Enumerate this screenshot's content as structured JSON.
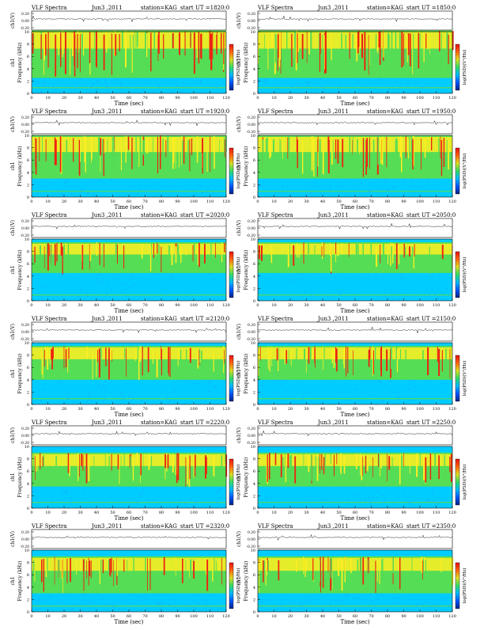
{
  "chart_data": [
    {
      "type": "heatmap",
      "header_left": "VLF Spectra",
      "date": "Jun3 ,2011",
      "station": "station=KAG",
      "start_ut": "start UT =1820:0",
      "waveform_label": "ch1(V)",
      "waveform_ticks": [
        "0.20",
        "0.00",
        "-0.20"
      ],
      "freq_label": "Frequency (kHz)",
      "channel_label": "ch1",
      "freq_ticks": [
        0,
        2,
        4,
        6,
        8,
        10
      ],
      "xlabel": "Time (sec)",
      "x_ticks": [
        0,
        10,
        20,
        30,
        40,
        50,
        60,
        70,
        80,
        90,
        100,
        110,
        120
      ],
      "xlim": [
        0,
        120
      ],
      "ylim": [
        0,
        10
      ],
      "colorbar_label": "log(PSD)(V²/Hz)",
      "band": {
        "low_khz": 2.5,
        "high_khz": 10.2,
        "intensity": 0.85
      }
    },
    {
      "type": "heatmap",
      "header_left": "VLF Spectra",
      "date": "Jun3 ,2011",
      "station": "station=KAG",
      "start_ut": "start UT =1850:0",
      "waveform_label": "ch1(V)",
      "waveform_ticks": [
        "0.20",
        "0.00",
        "-0.20"
      ],
      "freq_label": "Frequency (kHz)",
      "channel_label": "ch1",
      "freq_ticks": [
        0,
        2,
        4,
        6,
        8,
        10
      ],
      "xlabel": "Time (sec)",
      "x_ticks": [
        0,
        10,
        20,
        30,
        40,
        50,
        60,
        70,
        80,
        90,
        100,
        110,
        120
      ],
      "xlim": [
        0,
        120
      ],
      "ylim": [
        0,
        10
      ],
      "colorbar_label": "log(PSD)(V²/Hz)",
      "band": {
        "low_khz": 2.5,
        "high_khz": 10.2,
        "intensity": 0.85
      }
    },
    {
      "type": "heatmap",
      "header_left": "VLF Spectra",
      "date": "Jun3 ,2011",
      "station": "station=KAG",
      "start_ut": "start UT =1920:0",
      "waveform_label": "ch1(V)",
      "waveform_ticks": [
        "0.20",
        "0.00",
        "-0.20"
      ],
      "freq_label": "Frequency (kHz)",
      "channel_label": "ch1",
      "freq_ticks": [
        0,
        2,
        4,
        6,
        8,
        10
      ],
      "xlabel": "Time (sec)",
      "x_ticks": [
        0,
        10,
        20,
        30,
        40,
        50,
        60,
        70,
        80,
        90,
        100,
        110,
        120
      ],
      "xlim": [
        0,
        120
      ],
      "ylim": [
        0,
        10
      ],
      "colorbar_label": "log(PSD)(V²/Hz)",
      "band": {
        "low_khz": 3.0,
        "high_khz": 10.0,
        "intensity": 0.8
      }
    },
    {
      "type": "heatmap",
      "header_left": "VLF Spectra",
      "date": "Jun3 ,2011",
      "station": "station=KAG",
      "start_ut": "start UT =1950:0",
      "waveform_label": "ch1(V)",
      "waveform_ticks": [
        "0.20",
        "0.00",
        "-0.20"
      ],
      "freq_label": "Frequency (kHz)",
      "channel_label": "ch1",
      "freq_ticks": [
        0,
        2,
        4,
        6,
        8,
        10
      ],
      "xlabel": "Time (sec)",
      "x_ticks": [
        0,
        10,
        20,
        30,
        40,
        50,
        60,
        70,
        80,
        90,
        100,
        110,
        120
      ],
      "xlim": [
        0,
        120
      ],
      "ylim": [
        0,
        10
      ],
      "colorbar_label": "log(PSD)(V²/Hz)",
      "band": {
        "low_khz": 3.0,
        "high_khz": 10.0,
        "intensity": 0.8
      }
    },
    {
      "type": "heatmap",
      "header_left": "VLF Spectra",
      "date": "Jun3 ,2011",
      "station": "station=KAG",
      "start_ut": "start UT =2020:0",
      "waveform_label": "ch1(V)",
      "waveform_ticks": [
        "0.20",
        "0.00",
        "-0.20"
      ],
      "freq_label": "Frequency (kHz)",
      "channel_label": "ch1",
      "freq_ticks": [
        0,
        2,
        4,
        6,
        8,
        10
      ],
      "xlabel": "Time (sec)",
      "x_ticks": [
        0,
        10,
        20,
        30,
        40,
        50,
        60,
        70,
        80,
        90,
        100,
        110,
        120
      ],
      "xlim": [
        0,
        120
      ],
      "ylim": [
        0,
        10
      ],
      "colorbar_label": "log(PSD)(V²/Hz)",
      "band": {
        "low_khz": 4.5,
        "high_khz": 9.5,
        "intensity": 0.55
      }
    },
    {
      "type": "heatmap",
      "header_left": "VLF Spectra",
      "date": "Jun3 ,2011",
      "station": "station=KAG",
      "start_ut": "start UT =2050:0",
      "waveform_label": "ch1(V)",
      "waveform_ticks": [
        "0.20",
        "0.00",
        "-0.20"
      ],
      "freq_label": "Frequency (kHz)",
      "channel_label": "ch1",
      "freq_ticks": [
        0,
        2,
        4,
        6,
        8,
        10
      ],
      "xlabel": "Time (sec)",
      "x_ticks": [
        0,
        10,
        20,
        30,
        40,
        50,
        60,
        70,
        80,
        90,
        100,
        110,
        120
      ],
      "xlim": [
        0,
        120
      ],
      "ylim": [
        0,
        10
      ],
      "colorbar_label": "log(PSD)(V²/Hz)",
      "band": {
        "low_khz": 4.5,
        "high_khz": 9.5,
        "intensity": 0.5
      }
    },
    {
      "type": "heatmap",
      "header_left": "VLF Spectra",
      "date": "Jun3 ,2011",
      "station": "station=KAG",
      "start_ut": "start UT =2120:0",
      "waveform_label": "ch1(V)",
      "waveform_ticks": [
        "0.20",
        "0.00",
        "-0.20"
      ],
      "freq_label": "Frequency (kHz)",
      "channel_label": "ch1",
      "freq_ticks": [
        0,
        2,
        4,
        6,
        8,
        10
      ],
      "xlabel": "Time (sec)",
      "x_ticks": [
        0,
        10,
        20,
        30,
        40,
        50,
        60,
        70,
        80,
        90,
        100,
        110,
        120
      ],
      "xlim": [
        0,
        120
      ],
      "ylim": [
        0,
        10
      ],
      "colorbar_label": "log(PSD)(V²/Hz)",
      "band": {
        "low_khz": 4.0,
        "high_khz": 9.5,
        "intensity": 0.6
      }
    },
    {
      "type": "heatmap",
      "header_left": "VLF Spectra",
      "date": "Jun3 ,2011",
      "station": "station=KAG",
      "start_ut": "start UT =2150:0",
      "waveform_label": "ch1(V)",
      "waveform_ticks": [
        "0.20",
        "0.00",
        "-0.20"
      ],
      "freq_label": "Frequency (kHz)",
      "channel_label": "ch1",
      "freq_ticks": [
        0,
        2,
        4,
        6,
        8,
        10
      ],
      "xlabel": "Time (sec)",
      "x_ticks": [
        0,
        10,
        20,
        30,
        40,
        50,
        60,
        70,
        80,
        90,
        100,
        110,
        120
      ],
      "xlim": [
        0,
        120
      ],
      "ylim": [
        0,
        10
      ],
      "colorbar_label": "log(PSD)(V²/Hz)",
      "band": {
        "low_khz": 4.0,
        "high_khz": 9.5,
        "intensity": 0.6
      }
    },
    {
      "type": "heatmap",
      "header_left": "VLF Spectra",
      "date": "Jun3 ,2011",
      "station": "station=KAG",
      "start_ut": "start UT =2220:0",
      "waveform_label": "ch1(V)",
      "waveform_ticks": [
        "0.20",
        "0.00",
        "-0.20"
      ],
      "freq_label": "Frequency (kHz)",
      "channel_label": "ch1",
      "freq_ticks": [
        0,
        2,
        4,
        6,
        8,
        10
      ],
      "xlabel": "Time (sec)",
      "x_ticks": [
        0,
        10,
        20,
        30,
        40,
        50,
        60,
        70,
        80,
        90,
        100,
        110,
        120
      ],
      "xlim": [
        0,
        120
      ],
      "ylim": [
        0,
        10
      ],
      "colorbar_label": "log(PSD)(V²/Hz)",
      "band": {
        "low_khz": 3.5,
        "high_khz": 9.0,
        "intensity": 0.7
      }
    },
    {
      "type": "heatmap",
      "header_left": "VLF Spectra",
      "date": "Jun3 ,2011",
      "station": "station=KAG",
      "start_ut": "start UT =2250:0",
      "waveform_label": "ch1(V)",
      "waveform_ticks": [
        "0.20",
        "0.00",
        "-0.20"
      ],
      "freq_label": "Frequency (kHz)",
      "channel_label": "ch1",
      "freq_ticks": [
        0,
        2,
        4,
        6,
        8,
        10
      ],
      "xlabel": "Time (sec)",
      "x_ticks": [
        0,
        10,
        20,
        30,
        40,
        50,
        60,
        70,
        80,
        90,
        100,
        110,
        120
      ],
      "xlim": [
        0,
        120
      ],
      "ylim": [
        0,
        10
      ],
      "colorbar_label": "log(PSD)(V²/Hz)",
      "band": {
        "low_khz": 3.5,
        "high_khz": 9.0,
        "intensity": 0.7
      }
    },
    {
      "type": "heatmap",
      "header_left": "VLF Spectra",
      "date": "Jun3 ,2011",
      "station": "station=KAG",
      "start_ut": "start UT =2320:0",
      "waveform_label": "ch1(V)",
      "waveform_ticks": [
        "0.20",
        "0.00",
        "-0.20"
      ],
      "freq_label": "Frequency (kHz)",
      "channel_label": "ch1",
      "freq_ticks": [
        0,
        2,
        4,
        6,
        8,
        10
      ],
      "xlabel": "Time (sec)",
      "x_ticks": [
        0,
        10,
        20,
        30,
        40,
        50,
        60,
        70,
        80,
        90,
        100,
        110,
        120
      ],
      "xlim": [
        0,
        120
      ],
      "ylim": [
        0,
        10
      ],
      "colorbar_label": "log(PSD)(V²/Hz)",
      "band": {
        "low_khz": 3.0,
        "high_khz": 9.0,
        "intensity": 0.65
      }
    },
    {
      "type": "heatmap",
      "header_left": "VLF Spectra",
      "date": "Jun3 ,2011",
      "station": "station=KAG",
      "start_ut": "start UT =2350:0",
      "waveform_label": "ch1(V)",
      "waveform_ticks": [
        "0.20",
        "0.00",
        "-0.20"
      ],
      "freq_label": "Frequency (kHz)",
      "channel_label": "ch1",
      "freq_ticks": [
        0,
        2,
        4,
        6,
        8,
        10
      ],
      "xlabel": "Time (sec)",
      "x_ticks": [
        0,
        10,
        20,
        30,
        40,
        50,
        60,
        70,
        80,
        90,
        100,
        110,
        120
      ],
      "xlim": [
        0,
        120
      ],
      "ylim": [
        0,
        10
      ],
      "colorbar_label": "log(PSD)(V²/Hz)",
      "band": {
        "low_khz": 3.0,
        "high_khz": 9.0,
        "intensity": 0.6
      }
    }
  ],
  "colors": {
    "background": "#00ccff",
    "low": "#2299ff",
    "mid": "#55dd55",
    "high": "#ffee22",
    "peak": "#ee2211",
    "colorbar": [
      "#002288",
      "#0055ff",
      "#00bbff",
      "#33dd66",
      "#dddd22",
      "#ff6611",
      "#ee1111"
    ]
  }
}
